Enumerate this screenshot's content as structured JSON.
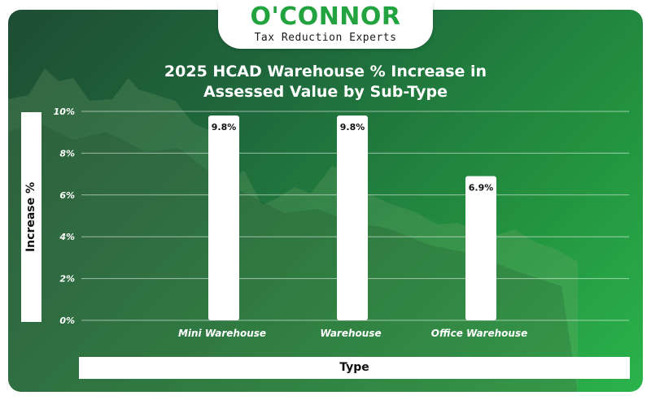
{
  "brand": {
    "name": "O'CONNOR",
    "tagline": "Tax Reduction Experts",
    "color": "#22a33f"
  },
  "chart_data": {
    "type": "bar",
    "title": "2025 HCAD Warehouse % Increase in Assessed Value by Sub-Type",
    "title_lines": [
      "2025 HCAD Warehouse % Increase in",
      "Assessed Value by Sub-Type"
    ],
    "xlabel": "Type",
    "ylabel": "Increase %",
    "categories": [
      "Mini Warehouse",
      "Warehouse",
      "Office Warehouse"
    ],
    "values": [
      9.8,
      9.8,
      6.9
    ],
    "data_labels": [
      "9.8%",
      "9.8%",
      "6.9%"
    ],
    "ylim": [
      0,
      10
    ],
    "yticks": [
      0,
      2,
      4,
      6,
      8,
      10
    ],
    "ytick_labels": [
      "0%",
      "2%",
      "4%",
      "6%",
      "8%",
      "10%"
    ],
    "grid": true,
    "bar_color": "#ffffff",
    "background_colors": [
      "#1e4d33",
      "#2bb34b"
    ]
  }
}
